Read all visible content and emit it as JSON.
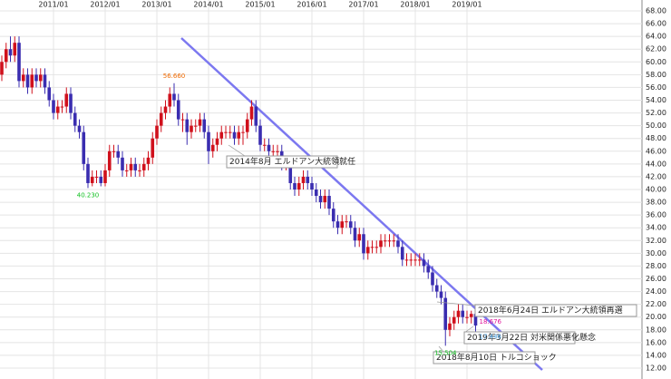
{
  "chart_data": {
    "type": "candlestick",
    "categories": [
      null,
      null,
      null,
      null,
      null,
      null,
      null,
      null,
      null,
      null,
      null,
      null,
      "2011/01",
      null,
      null,
      null,
      null,
      null,
      null,
      null,
      null,
      null,
      null,
      null,
      "2012/01",
      null,
      null,
      null,
      null,
      null,
      null,
      null,
      null,
      null,
      null,
      null,
      "2013/01",
      null,
      null,
      null,
      null,
      null,
      null,
      null,
      null,
      null,
      null,
      null,
      "2014/01",
      null,
      null,
      null,
      null,
      null,
      null,
      null,
      null,
      null,
      null,
      null,
      "2015/01",
      null,
      null,
      null,
      null,
      null,
      null,
      null,
      null,
      null,
      null,
      null,
      "2016/01",
      null,
      null,
      null,
      null,
      null,
      null,
      null,
      null,
      null,
      null,
      null,
      "2017/01",
      null,
      null,
      null,
      null,
      null,
      null,
      null,
      null,
      null,
      null,
      null,
      "2018/01",
      null,
      null,
      null,
      null,
      null,
      null,
      null,
      null,
      null,
      null,
      null,
      "2019/01",
      null,
      null
    ],
    "ohlc": [
      [
        58,
        61,
        57,
        60
      ],
      [
        60,
        63,
        59,
        62
      ],
      [
        62,
        64,
        60,
        61
      ],
      [
        61,
        64,
        60,
        63
      ],
      [
        63,
        64,
        56,
        57
      ],
      [
        57,
        59,
        56,
        58
      ],
      [
        58,
        59,
        55,
        56
      ],
      [
        56,
        59,
        55,
        58
      ],
      [
        58,
        59,
        56,
        57
      ],
      [
        57,
        59,
        56,
        58
      ],
      [
        58,
        59,
        55,
        56
      ],
      [
        56,
        57,
        53,
        54
      ],
      [
        54,
        55,
        51,
        52
      ],
      [
        52,
        54,
        51,
        53
      ],
      [
        53,
        54,
        52,
        53
      ],
      [
        53,
        56,
        52,
        55
      ],
      [
        55,
        56,
        51,
        52
      ],
      [
        52,
        53,
        49,
        50
      ],
      [
        50,
        51,
        48,
        49
      ],
      [
        49,
        50,
        43,
        44
      ],
      [
        44,
        45,
        40.23,
        41
      ],
      [
        41,
        43,
        40.5,
        42
      ],
      [
        42,
        43,
        41,
        42
      ],
      [
        42,
        43,
        40.5,
        41
      ],
      [
        41,
        44,
        40.5,
        43
      ],
      [
        43,
        47,
        42,
        46
      ],
      [
        46,
        47,
        45,
        46
      ],
      [
        46,
        47,
        44,
        45
      ],
      [
        45,
        46,
        42,
        43
      ],
      [
        43,
        44,
        42,
        43
      ],
      [
        43,
        45,
        42,
        44
      ],
      [
        44,
        45,
        42,
        43
      ],
      [
        43,
        44,
        42,
        43
      ],
      [
        43,
        45,
        42,
        44
      ],
      [
        44,
        46,
        43,
        45
      ],
      [
        45,
        49,
        44,
        48
      ],
      [
        48,
        51,
        47,
        50
      ],
      [
        50,
        53,
        49,
        52
      ],
      [
        52,
        54,
        51,
        53
      ],
      [
        53,
        56,
        52,
        55
      ],
      [
        55,
        56.66,
        53,
        54
      ],
      [
        54,
        55,
        50,
        51
      ],
      [
        51,
        52,
        49,
        51
      ],
      [
        51,
        52,
        47,
        49
      ],
      [
        49,
        51,
        48,
        50
      ],
      [
        50,
        51,
        49,
        50
      ],
      [
        50,
        52,
        49,
        51
      ],
      [
        51,
        52,
        48,
        49
      ],
      [
        49,
        50,
        44,
        46
      ],
      [
        46,
        48,
        45,
        47
      ],
      [
        47,
        49,
        46,
        48
      ],
      [
        48,
        50,
        47,
        49
      ],
      [
        49,
        50,
        48,
        49
      ],
      [
        49,
        50,
        48,
        49
      ],
      [
        49,
        50,
        47,
        48
      ],
      [
        48,
        50,
        47,
        49
      ],
      [
        49,
        50,
        47,
        49
      ],
      [
        49,
        52,
        48,
        51
      ],
      [
        51,
        54,
        50,
        53
      ],
      [
        53,
        54,
        49,
        50
      ],
      [
        50,
        51,
        46,
        47
      ],
      [
        47,
        48,
        46,
        47
      ],
      [
        47,
        48,
        45,
        46
      ],
      [
        46,
        47,
        45,
        46
      ],
      [
        46,
        47,
        45,
        46
      ],
      [
        46,
        47,
        43,
        44
      ],
      [
        44,
        45,
        43,
        44
      ],
      [
        44,
        45,
        40,
        41
      ],
      [
        41,
        42,
        39,
        40
      ],
      [
        40,
        42,
        39,
        41
      ],
      [
        41,
        43,
        40,
        42
      ],
      [
        42,
        43,
        40,
        41
      ],
      [
        41,
        42,
        39,
        40
      ],
      [
        40,
        41,
        38,
        39
      ],
      [
        39,
        40,
        37,
        38
      ],
      [
        38,
        40,
        37,
        39
      ],
      [
        39,
        40,
        36,
        37
      ],
      [
        37,
        38,
        34,
        35
      ],
      [
        35,
        36,
        33,
        34
      ],
      [
        34,
        36,
        33,
        35
      ],
      [
        35,
        36,
        34,
        35
      ],
      [
        35,
        36,
        33,
        34
      ],
      [
        34,
        35,
        31,
        32
      ],
      [
        32,
        34,
        31,
        33
      ],
      [
        33,
        34,
        29,
        30
      ],
      [
        30,
        32,
        29,
        31
      ],
      [
        31,
        32,
        30,
        31
      ],
      [
        31,
        32,
        30,
        31
      ],
      [
        31,
        33,
        30,
        32
      ],
      [
        32,
        33,
        31,
        32
      ],
      [
        32,
        33,
        31,
        32
      ],
      [
        32,
        33,
        31,
        32
      ],
      [
        32,
        33,
        30,
        31
      ],
      [
        31,
        32,
        28,
        29
      ],
      [
        29,
        30,
        28,
        29
      ],
      [
        29,
        30,
        28,
        29
      ],
      [
        29,
        30,
        28,
        29
      ],
      [
        29,
        30,
        28,
        29
      ],
      [
        29,
        30,
        27,
        28
      ],
      [
        28,
        29,
        26,
        27
      ],
      [
        27,
        28,
        24,
        25
      ],
      [
        25,
        26,
        23,
        24
      ],
      [
        24,
        25,
        22,
        23
      ],
      [
        23,
        24,
        15.504,
        18
      ],
      [
        18,
        20,
        17,
        19
      ],
      [
        19,
        21,
        18,
        20
      ],
      [
        20,
        22,
        19,
        21
      ],
      [
        21,
        22,
        19,
        20
      ],
      [
        20,
        21,
        19,
        20
      ],
      [
        20,
        21,
        19,
        20.5
      ],
      [
        20.5,
        21,
        17.446,
        18.676
      ]
    ],
    "up_color": "#d0101c",
    "down_color": "#3a2db0",
    "ylim": [
      12,
      68
    ],
    "yticks": [
      {
        "value": 12,
        "label": "12.00"
      },
      {
        "value": 14,
        "label": "14.00"
      },
      {
        "value": 16,
        "label": "16.00"
      },
      {
        "value": 18,
        "label": "18.00"
      },
      {
        "value": 20,
        "label": "20.00"
      },
      {
        "value": 22,
        "label": "22.00"
      },
      {
        "value": 24,
        "label": "24.00"
      },
      {
        "value": 26,
        "label": "26.00"
      },
      {
        "value": 28,
        "label": "28.00"
      },
      {
        "value": 30,
        "label": "30.00"
      },
      {
        "value": 32,
        "label": "32.00"
      },
      {
        "value": 34,
        "label": "34.00"
      },
      {
        "value": 36,
        "label": "36.00"
      },
      {
        "value": 38,
        "label": "38.00"
      },
      {
        "value": 40,
        "label": "40.00"
      },
      {
        "value": 42,
        "label": "42.00"
      },
      {
        "value": 44,
        "label": "44.00"
      },
      {
        "value": 46,
        "label": "46.00"
      },
      {
        "value": 48,
        "label": "48.00"
      },
      {
        "value": 50,
        "label": "50.00"
      },
      {
        "value": 52,
        "label": "52.00"
      },
      {
        "value": 54,
        "label": "54.00"
      },
      {
        "value": 56,
        "label": "56.00"
      },
      {
        "value": 58,
        "label": "58.00"
      },
      {
        "value": 60,
        "label": "60.00"
      },
      {
        "value": 62,
        "label": "62.00"
      },
      {
        "value": 64,
        "label": "64.00"
      },
      {
        "value": 66,
        "label": "66.00"
      },
      {
        "value": 68,
        "label": "68.00"
      }
    ],
    "grid": true,
    "value_labels": [
      {
        "text": "56.660",
        "value": 56.66,
        "color": "#f06a00"
      },
      {
        "text": "40.230",
        "value": 40.23,
        "color": "#10c020"
      },
      {
        "text": "15.504",
        "value": 15.504,
        "color": "#10c020"
      },
      {
        "text": "18.676",
        "value": 18.676,
        "color": "#e0109a"
      },
      {
        "text": "17.446",
        "value": 17.446,
        "color": "#4aa0e0"
      }
    ],
    "annotations": [
      "2014年8月 エルドアン大統領就任",
      "2018年6月24日 エルドアン大統領再選",
      "2019年3月22日 対米関係悪化懸念",
      "2018年8月10日 トルコショック"
    ]
  }
}
